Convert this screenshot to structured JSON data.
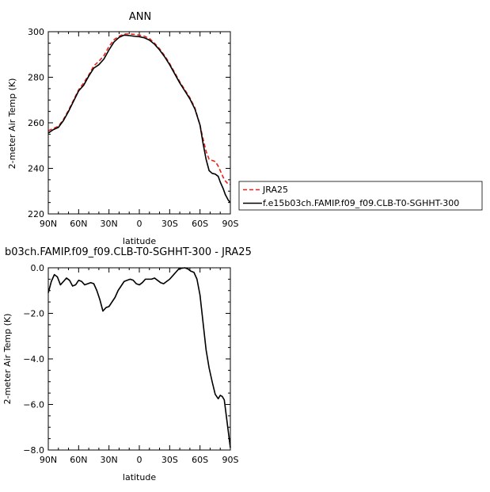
{
  "chart_data": [
    {
      "type": "line",
      "title": "ANN",
      "xlabel": "latitude",
      "ylabel": "2-meter Air Temp (K)",
      "xlim": [
        90,
        -90
      ],
      "ylim": [
        220,
        300
      ],
      "xticks": [
        90,
        60,
        30,
        0,
        -30,
        -60,
        -90
      ],
      "xtick_labels": [
        "90N",
        "60N",
        "30N",
        "0",
        "30S",
        "60S",
        "90S"
      ],
      "yticks": [
        220,
        240,
        260,
        280,
        300
      ],
      "ytick_labels": [
        "220",
        "240",
        "260",
        "280",
        "300"
      ],
      "grid": false,
      "legend_position": "outside-right",
      "series": [
        {
          "name": "JRA25",
          "color": "#e8211b",
          "dash": "dashed",
          "x": [
            90,
            85,
            80,
            75,
            70,
            65,
            60,
            55,
            50,
            45,
            40,
            35,
            30,
            25,
            20,
            15,
            10,
            5,
            0,
            -5,
            -10,
            -15,
            -20,
            -25,
            -30,
            -35,
            -40,
            -45,
            -50,
            -55,
            -60,
            -63,
            -66,
            -69,
            -72,
            -75,
            -78,
            -80,
            -83,
            -85,
            -88,
            -90
          ],
          "y": [
            256.5,
            257.5,
            258.5,
            261.5,
            265.5,
            270,
            274.5,
            277.5,
            281,
            285,
            287,
            289.5,
            293.5,
            296.5,
            298,
            299,
            299,
            298.8,
            298.5,
            298,
            297,
            295,
            292.5,
            289.5,
            286,
            282,
            278,
            274.5,
            271,
            266.5,
            259,
            253,
            247.5,
            244,
            243.5,
            243,
            241,
            239,
            236,
            234.5,
            233,
            233
          ]
        },
        {
          "name": "f.e15b03ch.FAMIP.f09_f09.CLB-T0-SGHHT-300",
          "color": "#000000",
          "dash": "solid",
          "x": [
            90,
            85,
            80,
            75,
            70,
            65,
            60,
            55,
            50,
            45,
            40,
            35,
            30,
            25,
            20,
            15,
            10,
            5,
            0,
            -5,
            -10,
            -15,
            -20,
            -25,
            -30,
            -35,
            -40,
            -45,
            -50,
            -55,
            -60,
            -63,
            -66,
            -69,
            -72,
            -75,
            -78,
            -80,
            -83,
            -85,
            -88,
            -90
          ],
          "y": [
            255.5,
            257,
            258,
            261,
            265,
            269.5,
            274,
            276.5,
            280.5,
            284,
            285.5,
            288,
            292,
            295.5,
            297.5,
            298.5,
            298.3,
            298,
            297.8,
            297.3,
            296.3,
            294.5,
            292,
            289,
            285.5,
            281.5,
            277.5,
            274,
            270.5,
            266,
            259,
            251,
            244,
            239,
            237.8,
            237.5,
            236.5,
            234,
            231,
            228.5,
            226,
            225
          ]
        }
      ]
    },
    {
      "type": "line",
      "title": "b03ch.FAMIP.f09_f09.CLB-T0-SGHHT-300 - JRA25",
      "xlabel": "latitude",
      "ylabel": "2-meter Air Temp (K)",
      "xlim": [
        90,
        -90
      ],
      "ylim": [
        -8,
        0
      ],
      "xticks": [
        90,
        60,
        30,
        0,
        -30,
        -60,
        -90
      ],
      "xtick_labels": [
        "90N",
        "60N",
        "30N",
        "0",
        "30S",
        "60S",
        "90S"
      ],
      "yticks": [
        -8,
        -6,
        -4,
        -2,
        0
      ],
      "ytick_labels": [
        "−8.0",
        "−6.0",
        "−4.0",
        "−2.0",
        "0.0"
      ],
      "grid": false,
      "series": [
        {
          "color": "#000000",
          "dash": "solid",
          "x": [
            90,
            87,
            84,
            81,
            78,
            75,
            72,
            69,
            66,
            63,
            60,
            57,
            54,
            51,
            48,
            45,
            42,
            39,
            36,
            33,
            30,
            27,
            24,
            21,
            18,
            15,
            12,
            9,
            6,
            3,
            0,
            -3,
            -6,
            -9,
            -12,
            -15,
            -18,
            -21,
            -24,
            -27,
            -30,
            -33,
            -36,
            -39,
            -42,
            -45,
            -48,
            -51,
            -54,
            -57,
            -60,
            -61,
            -63,
            -66,
            -69,
            -72,
            -75,
            -78,
            -80,
            -82,
            -84,
            -86,
            -88,
            -90
          ],
          "y": [
            -1.1,
            -0.6,
            -0.3,
            -0.4,
            -0.75,
            -0.6,
            -0.45,
            -0.55,
            -0.8,
            -0.75,
            -0.55,
            -0.6,
            -0.75,
            -0.7,
            -0.65,
            -0.7,
            -1.0,
            -1.4,
            -1.9,
            -1.75,
            -1.7,
            -1.5,
            -1.3,
            -1.0,
            -0.8,
            -0.6,
            -0.55,
            -0.5,
            -0.55,
            -0.7,
            -0.75,
            -0.65,
            -0.5,
            -0.5,
            -0.5,
            -0.45,
            -0.55,
            -0.65,
            -0.7,
            -0.6,
            -0.5,
            -0.35,
            -0.2,
            -0.05,
            -0.02,
            0.0,
            -0.05,
            -0.15,
            -0.2,
            -0.5,
            -1.2,
            -1.6,
            -2.4,
            -3.6,
            -4.4,
            -5.0,
            -5.55,
            -5.75,
            -5.6,
            -5.65,
            -5.8,
            -6.5,
            -7.2,
            -7.9
          ]
        }
      ]
    }
  ],
  "legend": {
    "entries": [
      "JRA25",
      "f.e15b03ch.FAMIP.f09_f09.CLB-T0-SGHHT-300"
    ]
  }
}
